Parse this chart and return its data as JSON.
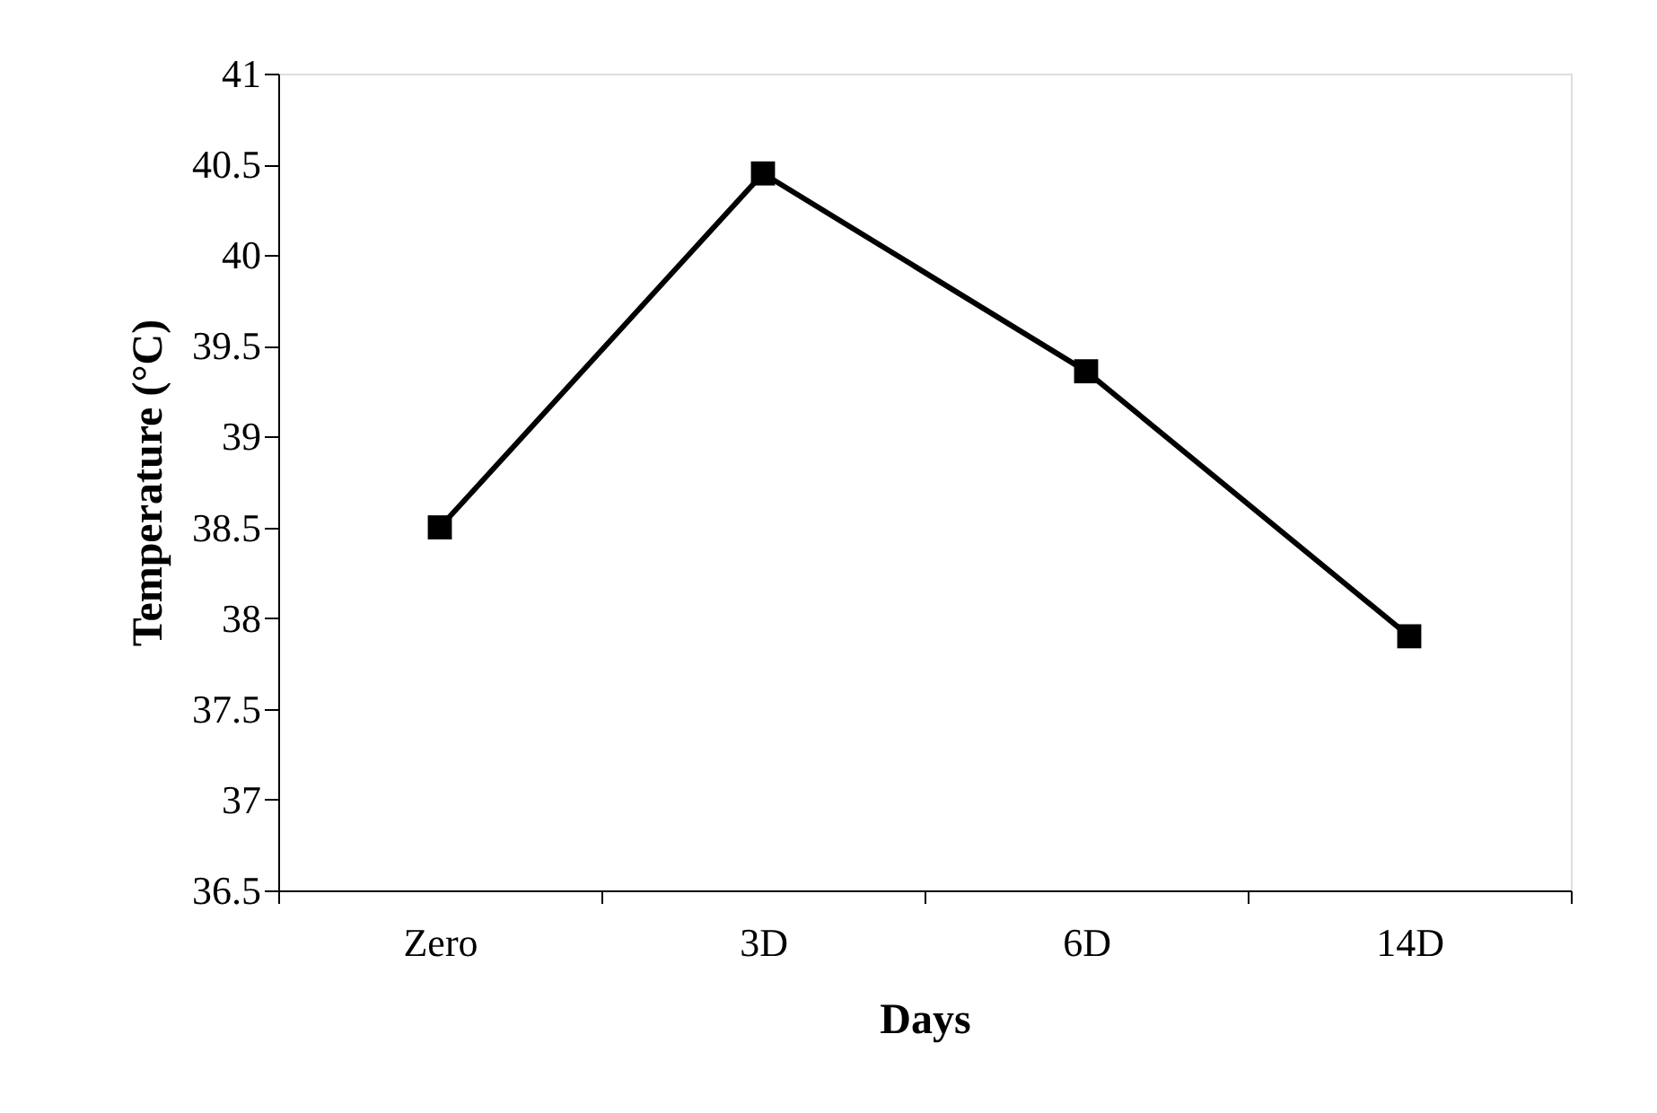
{
  "chart_data": {
    "type": "line",
    "xlabel": "Days",
    "ylabel": "Temperature (°C)",
    "categories": [
      "Zero",
      "3D",
      "6D",
      "14D"
    ],
    "series": [
      {
        "color": "#000000",
        "values": [
          38.5,
          40.45,
          39.36,
          37.9
        ]
      }
    ],
    "ylim": [
      36.5,
      41
    ],
    "yticks": [
      36.5,
      37,
      37.5,
      38,
      38.5,
      39,
      39.5,
      40,
      40.5,
      41
    ],
    "grid": false,
    "legend": false,
    "marker": "square",
    "line_style": "solid"
  }
}
